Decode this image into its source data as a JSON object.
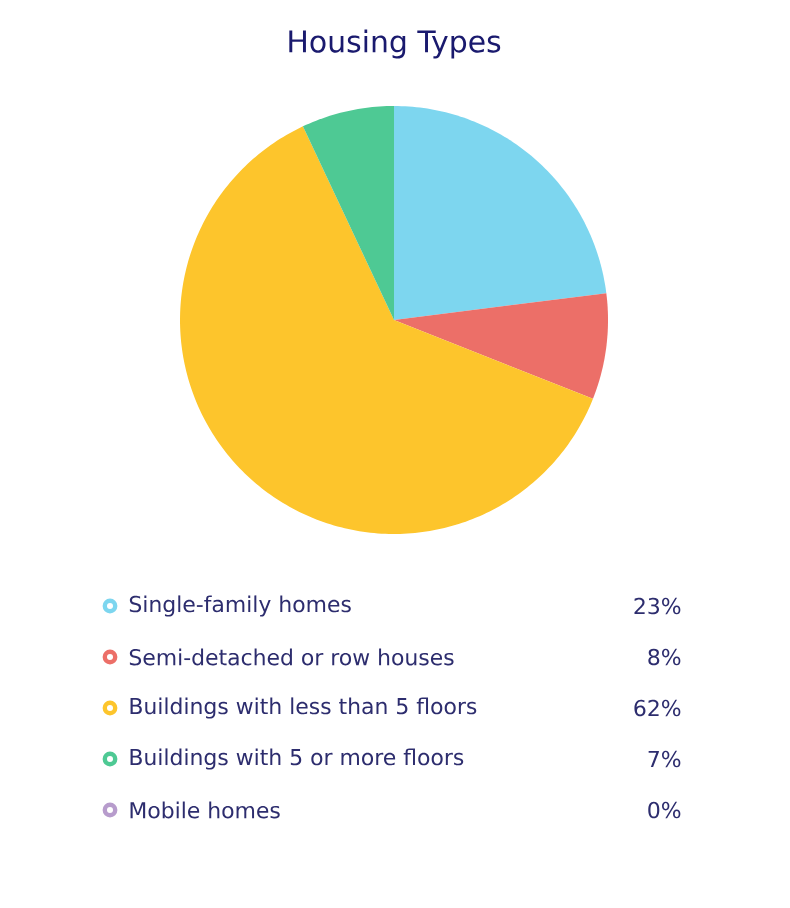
{
  "chart_data": {
    "type": "pie",
    "title": "Housing Types",
    "categories": [
      "Single-family homes",
      "Semi-detached or row houses",
      "Buildings with less than 5 floors",
      "Buildings with 5 or more floors",
      "Mobile homes"
    ],
    "values": [
      23,
      8,
      62,
      7,
      0
    ],
    "value_labels": [
      "23%",
      "8%",
      "62%",
      "7%",
      "0%"
    ],
    "colors": [
      "#7dd6ef",
      "#ec6f68",
      "#fdc52c",
      "#4ec994",
      "#b79ccc"
    ],
    "legend": "bottom"
  }
}
